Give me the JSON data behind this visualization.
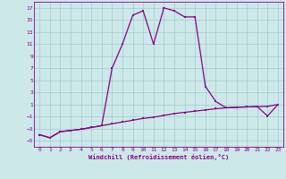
{
  "xlabel": "Windchill (Refroidissement éolien,°C)",
  "x": [
    0,
    1,
    2,
    3,
    4,
    5,
    6,
    7,
    8,
    9,
    10,
    11,
    12,
    13,
    14,
    15,
    16,
    17,
    18,
    19,
    20,
    21,
    22,
    23
  ],
  "y_diag": [
    -4.0,
    -4.5,
    -3.5,
    -3.3,
    -3.1,
    -2.8,
    -2.5,
    -2.2,
    -1.9,
    -1.6,
    -1.3,
    -1.1,
    -0.8,
    -0.5,
    -0.3,
    -0.1,
    0.1,
    0.3,
    0.45,
    0.55,
    0.6,
    0.65,
    0.7,
    1.0
  ],
  "y_curve": [
    -4.0,
    -4.5,
    -3.5,
    -3.3,
    -3.1,
    -2.8,
    -2.5,
    7.0,
    11.0,
    15.8,
    16.5,
    11.0,
    17.0,
    16.5,
    15.5,
    15.5,
    4.0,
    1.5,
    0.45,
    0.55,
    0.6,
    0.65,
    -0.9,
    1.0
  ],
  "bg_color": "#cce8e8",
  "line_color": "#880088",
  "grid_color": "#a0cccc",
  "ylim": [
    -6,
    18
  ],
  "yticks": [
    -5,
    -3,
    -1,
    1,
    3,
    5,
    7,
    9,
    11,
    13,
    15,
    17
  ],
  "xticks": [
    0,
    1,
    2,
    3,
    4,
    5,
    6,
    7,
    8,
    9,
    10,
    11,
    12,
    13,
    14,
    15,
    16,
    17,
    18,
    19,
    20,
    21,
    22,
    23
  ]
}
